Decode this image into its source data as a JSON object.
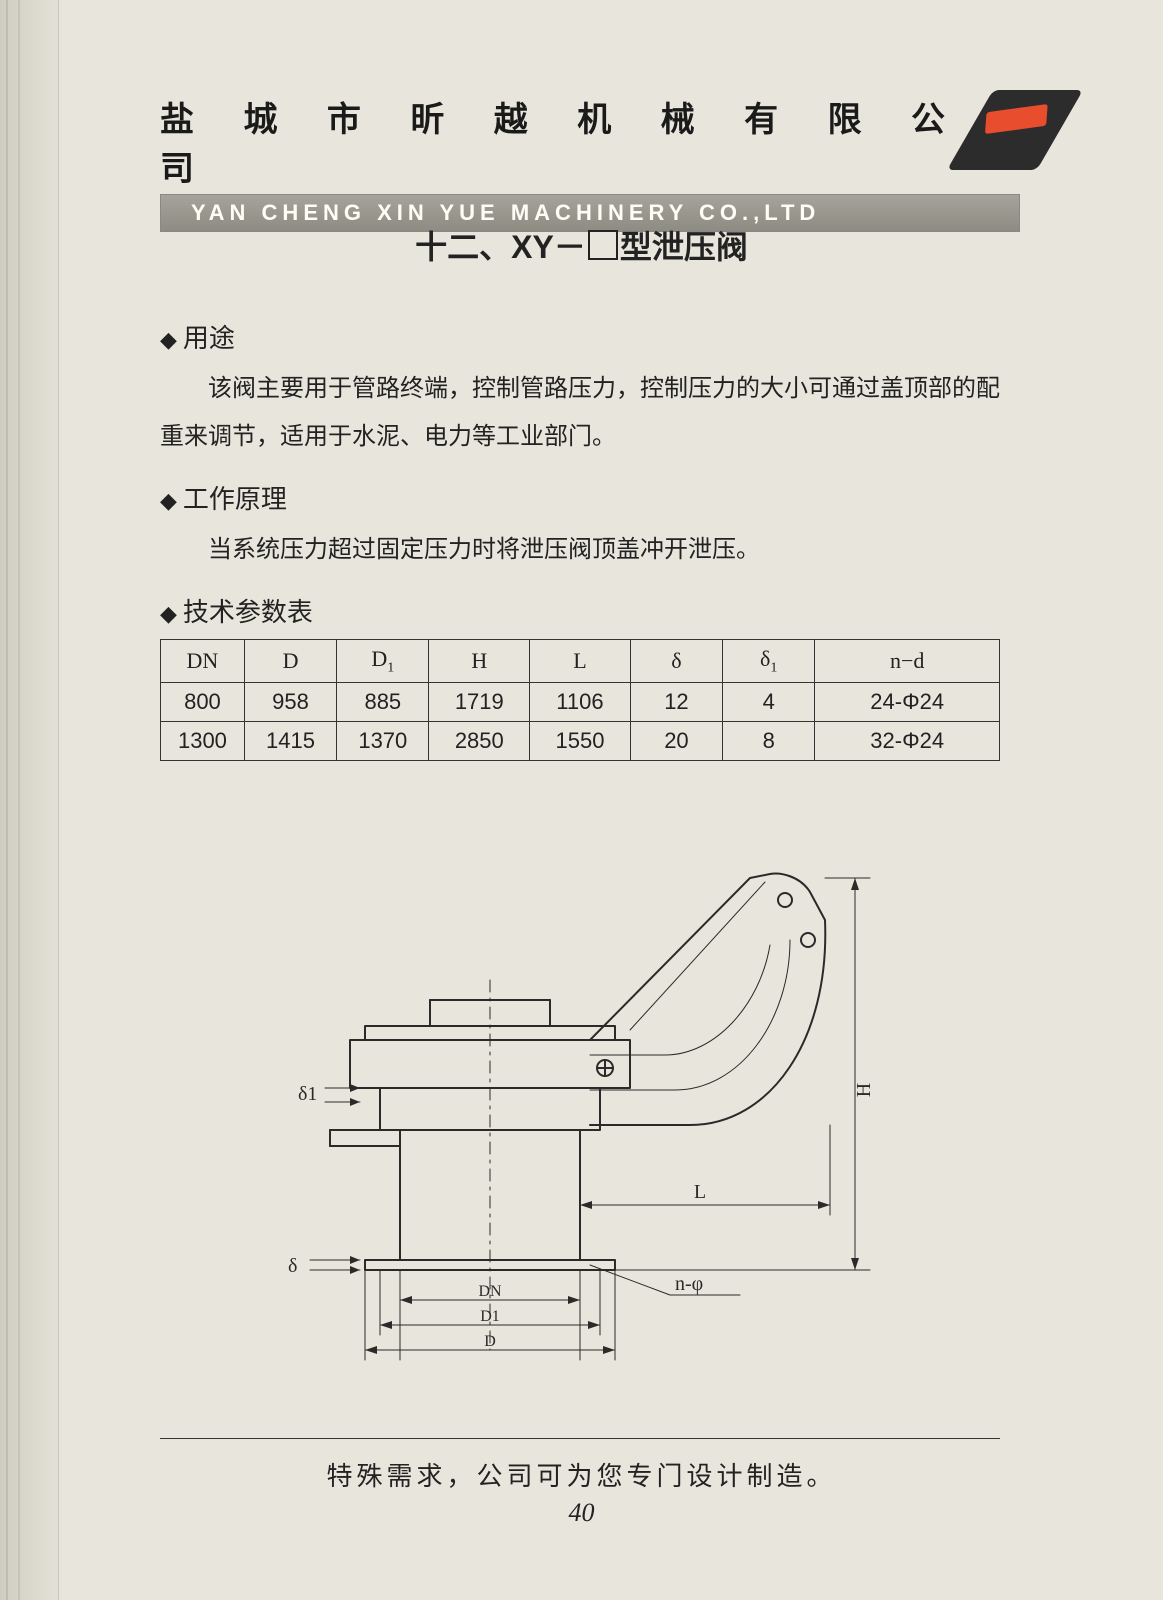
{
  "colors": {
    "page_bg": "#e8e6dc",
    "spine": "#d8d6ca",
    "header_bar": "#8e8c82",
    "header_text": "#fdfdf5",
    "text": "#222222",
    "table_border": "#333333",
    "logo_dark": "#2c2c2c",
    "logo_accent": "#e84e2e",
    "drawing_stroke": "#2a2a2a"
  },
  "fonts": {
    "cn_heading": "SimHei",
    "cn_body": "KaiTi",
    "latin": "Times New Roman",
    "header_cn_size_pt": 26,
    "header_en_size_pt": 16,
    "title_size_pt": 24,
    "section_h_size_pt": 20,
    "para_size_pt": 18,
    "table_size_pt": 16,
    "footer_size_pt": 20,
    "pagenum_size_pt": 20
  },
  "header": {
    "company_cn": "盐 城 市 昕 越 机 械 有 限 公 司",
    "company_en": "YAN CHENG XIN YUE MACHINERY CO.,LTD"
  },
  "title": {
    "prefix": "十二、XY－",
    "suffix": "型泄压阀"
  },
  "sections": {
    "usage_h": "用途",
    "usage_p": "该阀主要用于管路终端，控制管路压力，控制压力的大小可通过盖顶部的配重来调节，适用于水泥、电力等工业部门。",
    "principle_h": "工作原理",
    "principle_p": "当系统压力超过固定压力时将泄压阀顶盖冲开泄压。",
    "table_h": "技术参数表"
  },
  "table": {
    "columns": [
      "DN",
      "D",
      "D1",
      "H",
      "L",
      "delta",
      "delta1",
      "nd"
    ],
    "column_labels": {
      "DN": "DN",
      "D": "D",
      "D1": "D₁",
      "H": "H",
      "L": "L",
      "delta": "δ",
      "delta1": "δ₁",
      "nd": "n−d"
    },
    "column_widths_pct": [
      10,
      11,
      11,
      12,
      12,
      11,
      11,
      22
    ],
    "rows": [
      {
        "DN": "800",
        "D": "958",
        "D1": "885",
        "H": "1719",
        "L": "1106",
        "delta": "12",
        "delta1": "4",
        "nd": "24-Φ24"
      },
      {
        "DN": "1300",
        "D": "1415",
        "D1": "1370",
        "H": "2850",
        "L": "1550",
        "delta": "20",
        "delta1": "8",
        "nd": "32-Φ24"
      }
    ]
  },
  "diagram": {
    "type": "engineering-drawing",
    "stroke": "#2a2a2a",
    "stroke_width": 2,
    "thin_stroke_width": 1,
    "labels": {
      "delta1": "δ1",
      "delta": "δ",
      "H": "H",
      "L": "L",
      "DN": "DN",
      "D1": "D1",
      "D": "D",
      "nphi": "n-φ"
    }
  },
  "footer": {
    "text": "特殊需求，公司可为您专门设计制造。",
    "page": "40"
  }
}
